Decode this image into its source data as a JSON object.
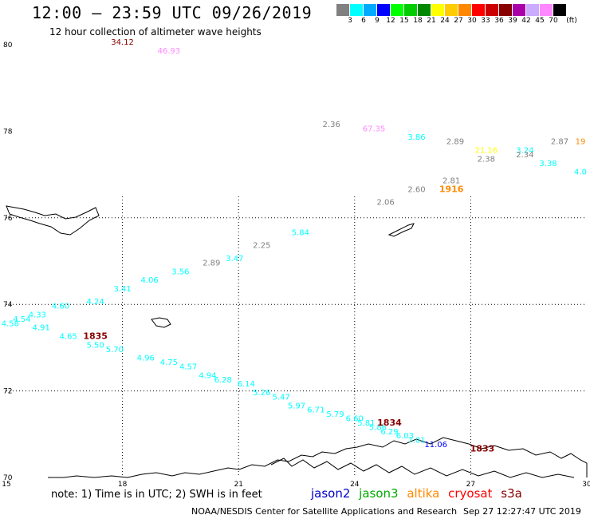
{
  "header": {
    "title": "12:00 – 23:59 UTC 09/26/2019",
    "subtitle": "12 hour collection of altimeter wave heights"
  },
  "colorbar": {
    "unit": "(ft)",
    "bins": [
      {
        "label": "3",
        "color": "#808080"
      },
      {
        "label": "6",
        "color": "#00ffff"
      },
      {
        "label": "9",
        "color": "#00aaff"
      },
      {
        "label": "12",
        "color": "#0000ff"
      },
      {
        "label": "15",
        "color": "#00ff00"
      },
      {
        "label": "18",
        "color": "#00cc00"
      },
      {
        "label": "21",
        "color": "#008800"
      },
      {
        "label": "24",
        "color": "#ffff00"
      },
      {
        "label": "27",
        "color": "#ffcc00"
      },
      {
        "label": "30",
        "color": "#ff8800"
      },
      {
        "label": "33",
        "color": "#ff0000"
      },
      {
        "label": "36",
        "color": "#cc0000"
      },
      {
        "label": "39",
        "color": "#880000"
      },
      {
        "label": "42",
        "color": "#aa00aa"
      },
      {
        "label": "45",
        "color": "#ccaaff"
      },
      {
        "label": "70",
        "color": "#ff88ff"
      },
      {
        "label": "",
        "color": "#000000"
      }
    ]
  },
  "map": {
    "lon_ticks": [
      "15",
      "18",
      "21",
      "24",
      "27",
      "30"
    ],
    "lat_ticks": [
      "80",
      "78",
      "76",
      "74",
      "72",
      "70"
    ],
    "lon_range": [
      15,
      30
    ],
    "lat_range": [
      70,
      80
    ]
  },
  "observations": [
    {
      "text": "34.12",
      "color": "#880000",
      "lon": 18.0,
      "lat": 80.0
    },
    {
      "text": "46.93",
      "color": "#ff88ff",
      "lon": 19.2,
      "lat": 79.8
    },
    {
      "text": "2.36",
      "color": "#808080",
      "lon": 23.4,
      "lat": 78.1
    },
    {
      "text": "67.35",
      "color": "#ff88ff",
      "lon": 24.5,
      "lat": 78.0
    },
    {
      "text": "3.86",
      "color": "#00ffff",
      "lon": 25.6,
      "lat": 77.8
    },
    {
      "text": "2.89",
      "color": "#808080",
      "lon": 26.6,
      "lat": 77.7
    },
    {
      "text": "21.16",
      "color": "#ffff00",
      "lon": 27.4,
      "lat": 77.5
    },
    {
      "text": "3.24",
      "color": "#00ffff",
      "lon": 28.4,
      "lat": 77.5
    },
    {
      "text": "2.87",
      "color": "#808080",
      "lon": 29.3,
      "lat": 77.7
    },
    {
      "text": "19",
      "color": "#ff8800",
      "lon": 30.0,
      "lat": 77.7
    },
    {
      "text": "2.38",
      "color": "#808080",
      "lon": 27.4,
      "lat": 77.3
    },
    {
      "text": "2.34",
      "color": "#808080",
      "lon": 28.4,
      "lat": 77.4
    },
    {
      "text": "3.38",
      "color": "#00ffff",
      "lon": 29.0,
      "lat": 77.2
    },
    {
      "text": "4.0",
      "color": "#00ffff",
      "lon": 30.0,
      "lat": 77.0
    },
    {
      "text": "2.81",
      "color": "#808080",
      "lon": 26.5,
      "lat": 76.8
    },
    {
      "text": "2.60",
      "color": "#808080",
      "lon": 25.6,
      "lat": 76.6
    },
    {
      "text": "2.06",
      "color": "#808080",
      "lon": 24.8,
      "lat": 76.3
    },
    {
      "text": "5.84",
      "color": "#00ffff",
      "lon": 22.6,
      "lat": 75.6
    },
    {
      "text": "2.25",
      "color": "#808080",
      "lon": 21.6,
      "lat": 75.3
    },
    {
      "text": "3.47",
      "color": "#00ffff",
      "lon": 20.9,
      "lat": 75.0
    },
    {
      "text": "2.89",
      "color": "#808080",
      "lon": 20.3,
      "lat": 74.9
    },
    {
      "text": "3.56",
      "color": "#00ffff",
      "lon": 19.5,
      "lat": 74.7
    },
    {
      "text": "4.06",
      "color": "#00ffff",
      "lon": 18.7,
      "lat": 74.5
    },
    {
      "text": "3.41",
      "color": "#00ffff",
      "lon": 18.0,
      "lat": 74.3
    },
    {
      "text": "4.24",
      "color": "#00ffff",
      "lon": 17.3,
      "lat": 74.0
    },
    {
      "text": "4.60",
      "color": "#00ffff",
      "lon": 16.4,
      "lat": 73.9
    },
    {
      "text": "4.33",
      "color": "#00ffff",
      "lon": 15.8,
      "lat": 73.7
    },
    {
      "text": "4.54",
      "color": "#00ffff",
      "lon": 15.4,
      "lat": 73.6
    },
    {
      "text": "4.58",
      "color": "#00ffff",
      "lon": 15.1,
      "lat": 73.5
    },
    {
      "text": "4.91",
      "color": "#00ffff",
      "lon": 15.9,
      "lat": 73.4
    },
    {
      "text": "4.65",
      "color": "#00ffff",
      "lon": 16.6,
      "lat": 73.2
    },
    {
      "text": "5.50",
      "color": "#00ffff",
      "lon": 17.3,
      "lat": 73.0
    },
    {
      "text": "5.70",
      "color": "#00ffff",
      "lon": 17.8,
      "lat": 72.9
    },
    {
      "text": "4.96",
      "color": "#00ffff",
      "lon": 18.6,
      "lat": 72.7
    },
    {
      "text": "4.75",
      "color": "#00ffff",
      "lon": 19.2,
      "lat": 72.6
    },
    {
      "text": "4.57",
      "color": "#00ffff",
      "lon": 19.7,
      "lat": 72.5
    },
    {
      "text": "4.94",
      "color": "#00ffff",
      "lon": 20.2,
      "lat": 72.3
    },
    {
      "text": "6.28",
      "color": "#00ffff",
      "lon": 20.6,
      "lat": 72.2
    },
    {
      "text": "6.14",
      "color": "#00ffff",
      "lon": 21.2,
      "lat": 72.1
    },
    {
      "text": "5.26",
      "color": "#00ffff",
      "lon": 21.6,
      "lat": 71.9
    },
    {
      "text": "5.47",
      "color": "#00ffff",
      "lon": 22.1,
      "lat": 71.8
    },
    {
      "text": "5.97",
      "color": "#00ffff",
      "lon": 22.5,
      "lat": 71.6
    },
    {
      "text": "6.71",
      "color": "#00ffff",
      "lon": 23.0,
      "lat": 71.5
    },
    {
      "text": "5.79",
      "color": "#00ffff",
      "lon": 23.5,
      "lat": 71.4
    },
    {
      "text": "6.60",
      "color": "#00ffff",
      "lon": 24.0,
      "lat": 71.3
    },
    {
      "text": "5.81",
      "color": "#00ffff",
      "lon": 24.3,
      "lat": 71.2
    },
    {
      "text": "5.86",
      "color": "#00ffff",
      "lon": 24.6,
      "lat": 71.1
    },
    {
      "text": "6.29",
      "color": "#00ffff",
      "lon": 24.9,
      "lat": 71.0
    },
    {
      "text": "6.03",
      "color": "#00ffff",
      "lon": 25.3,
      "lat": 70.9
    },
    {
      "text": "7.01",
      "color": "#00ffff",
      "lon": 25.6,
      "lat": 70.8
    },
    {
      "text": "11.06",
      "color": "#0000ff",
      "lon": 26.1,
      "lat": 70.7
    },
    {
      "text": "1835",
      "color": "#880000",
      "lon": 17.3,
      "lat": 73.2
    },
    {
      "text": "1834",
      "color": "#880000",
      "lon": 24.9,
      "lat": 71.2
    },
    {
      "text": "1916",
      "color": "#ff8800",
      "lon": 26.5,
      "lat": 76.6
    },
    {
      "text": "1833",
      "color": "#880000",
      "lon": 27.3,
      "lat": 70.6
    }
  ],
  "legend": {
    "note": "note: 1) Time is in UTC; 2) SWH is in feet",
    "missions": [
      {
        "label": "jason2",
        "color": "#0000cc"
      },
      {
        "label": "jason3",
        "color": "#00aa00"
      },
      {
        "label": "altika",
        "color": "#ff8800"
      },
      {
        "label": "cryosat",
        "color": "#ff0000"
      },
      {
        "label": "s3a",
        "color": "#880000"
      }
    ]
  },
  "footer": {
    "credit": "NOAA/NESDIS Center for Satellite Applications and Research",
    "date": "Sep 27 12:27:47 UTC 2019"
  }
}
